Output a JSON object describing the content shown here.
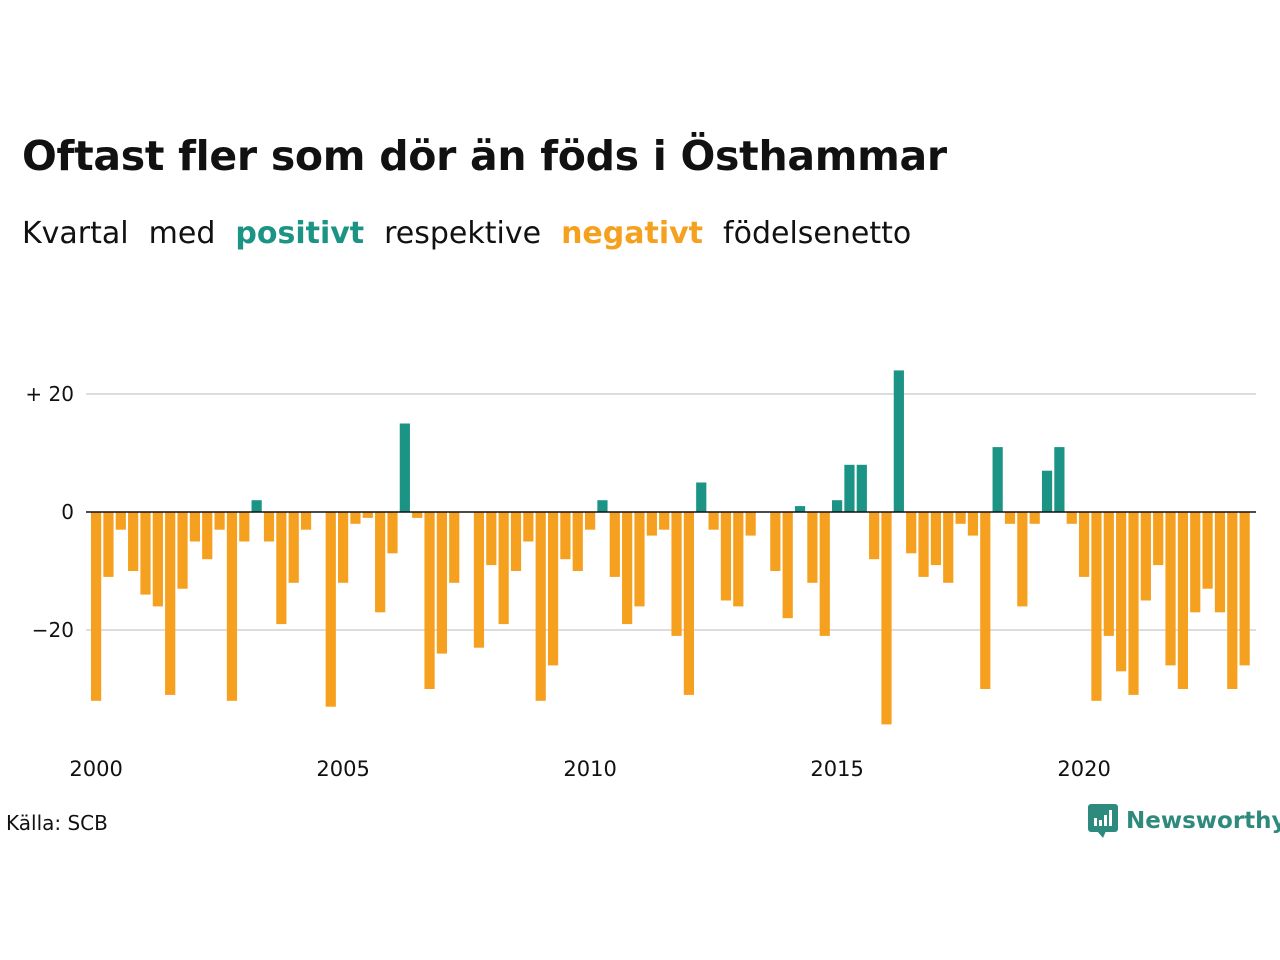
{
  "title": "Oftast fler som dör än föds i Östhammar",
  "subtitle": {
    "part1": "Kvartal",
    "part2": "med",
    "positive": "positivt",
    "part3": "respektive",
    "negative": "negativt",
    "part4": "födelsenetto"
  },
  "colors": {
    "positive": "#1b9486",
    "negative": "#f6a01f",
    "grid": "#dddddd",
    "zero_line": "#111111",
    "brand": "#2f8a7e"
  },
  "source": "Källa: SCB",
  "brand": {
    "name": "Newsworthy",
    "icon": "newsworthy-logo-icon"
  },
  "chart_data": {
    "type": "bar",
    "x_start": "2000 Q1",
    "period": "quarter",
    "ytick_labels": [
      {
        "value": 20,
        "label": "+ 20"
      },
      {
        "value": 0,
        "label": "0"
      },
      {
        "value": -20,
        "label": "−20"
      }
    ],
    "xtick_labels": [
      {
        "year": 2000,
        "label": "2000"
      },
      {
        "year": 2005,
        "label": "2005"
      },
      {
        "year": 2010,
        "label": "2010"
      },
      {
        "year": 2015,
        "label": "2015"
      },
      {
        "year": 2020,
        "label": "2020"
      }
    ],
    "ylim": [
      -38,
      26
    ],
    "grid": true,
    "values": [
      -32,
      -11,
      -3,
      -10,
      -14,
      -16,
      -31,
      -13,
      -5,
      -8,
      -3,
      -32,
      -5,
      2,
      -5,
      -19,
      -12,
      -3,
      0,
      -33,
      -12,
      -2,
      -1,
      -17,
      -7,
      15,
      -1,
      -30,
      -24,
      -12,
      0,
      -23,
      -9,
      -19,
      -10,
      -5,
      -32,
      -26,
      -8,
      -10,
      -3,
      2,
      -11,
      -19,
      -16,
      -4,
      -3,
      -21,
      -31,
      5,
      -3,
      -15,
      -16,
      -4,
      0,
      -10,
      -18,
      1,
      -12,
      -21,
      2,
      8,
      8,
      -8,
      -36,
      24,
      -7,
      -11,
      -9,
      -12,
      -2,
      -4,
      -30,
      11,
      -2,
      -16,
      -2,
      7,
      11,
      -2,
      -11,
      -32,
      -21,
      -27,
      -31,
      -15,
      -9,
      -26,
      -30,
      -17,
      -13,
      -17,
      -30,
      -26
    ]
  }
}
